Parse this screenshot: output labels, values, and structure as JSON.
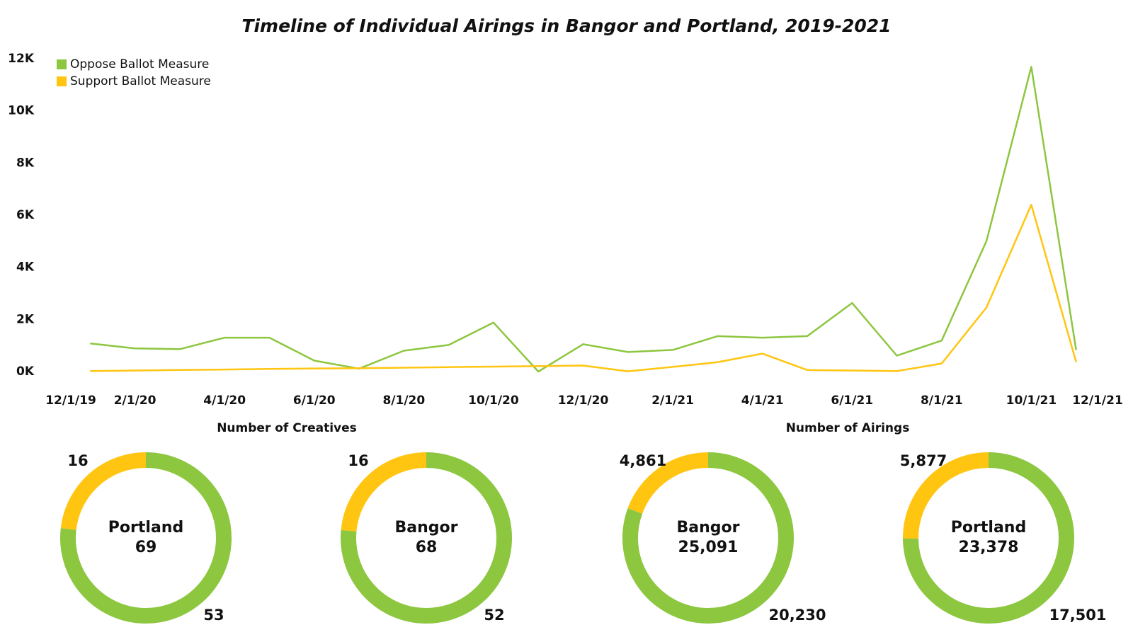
{
  "title": "Timeline of Individual Airings in Bangor and Portland, 2019-2021",
  "sections": [
    {
      "title": "Number of Creatives"
    },
    {
      "title": "Number of Airings"
    }
  ],
  "chart_data": [
    {
      "type": "line",
      "x": [
        "1/1/20",
        "2/1/20",
        "3/1/20",
        "4/1/20",
        "5/1/20",
        "6/1/20",
        "7/1/20",
        "8/1/20",
        "9/1/20",
        "10/1/20",
        "11/1/20",
        "12/1/20",
        "1/1/21",
        "2/1/21",
        "3/1/21",
        "4/1/21",
        "5/1/21",
        "6/1/21",
        "7/1/21",
        "8/1/21",
        "9/1/21",
        "10/1/21",
        "11/1/21"
      ],
      "xlim": [
        "12/1/19",
        "12/1/21"
      ],
      "xticks": [
        "12/1/19",
        "2/1/20",
        "4/1/20",
        "6/1/20",
        "8/1/20",
        "10/1/20",
        "12/1/20",
        "2/1/21",
        "4/1/21",
        "6/1/21",
        "8/1/21",
        "10/1/21",
        "12/1/21"
      ],
      "ylim": [
        0,
        12000
      ],
      "yticks": [
        {
          "value": 0,
          "label": "0K"
        },
        {
          "value": 2000,
          "label": "2K"
        },
        {
          "value": 4000,
          "label": "4K"
        },
        {
          "value": 6000,
          "label": "6K"
        },
        {
          "value": 8000,
          "label": "8K"
        },
        {
          "value": 10000,
          "label": "10K"
        },
        {
          "value": 12000,
          "label": "12K"
        }
      ],
      "legend": "top-left",
      "series": [
        {
          "name": "Oppose Ballot Measure",
          "color": "#8dc63f",
          "values": [
            1080,
            890,
            860,
            1300,
            1300,
            420,
            110,
            800,
            1020,
            1880,
            0,
            1050,
            750,
            830,
            1360,
            1300,
            1360,
            2630,
            610,
            1190,
            5010,
            11690,
            830
          ]
        },
        {
          "name": "Support Ballot Measure",
          "color": "#ffc510",
          "values": [
            20,
            40,
            60,
            80,
            100,
            120,
            130,
            150,
            170,
            190,
            210,
            230,
            10,
            180,
            360,
            690,
            60,
            40,
            20,
            310,
            2460,
            6400,
            370
          ]
        }
      ]
    },
    {
      "type": "donut",
      "section": 0,
      "title": "Portland",
      "total": 69,
      "total_label": "69",
      "values": [
        53,
        16
      ],
      "colors": [
        "#8dc63f",
        "#ffc510"
      ]
    },
    {
      "type": "donut",
      "section": 0,
      "title": "Bangor",
      "total": 68,
      "total_label": "68",
      "values": [
        52,
        16
      ],
      "colors": [
        "#8dc63f",
        "#ffc510"
      ]
    },
    {
      "type": "donut",
      "section": 1,
      "title": "Bangor",
      "total": 25091,
      "total_label": "25,091",
      "values": [
        20230,
        4861
      ],
      "value_labels": [
        "20,230",
        "4,861"
      ],
      "colors": [
        "#8dc63f",
        "#ffc510"
      ]
    },
    {
      "type": "donut",
      "section": 1,
      "title": "Portland",
      "total": 23378,
      "total_label": "23,378",
      "values": [
        17501,
        5877
      ],
      "value_labels": [
        "17,501",
        "5,877"
      ],
      "colors": [
        "#8dc63f",
        "#ffc510"
      ]
    }
  ]
}
